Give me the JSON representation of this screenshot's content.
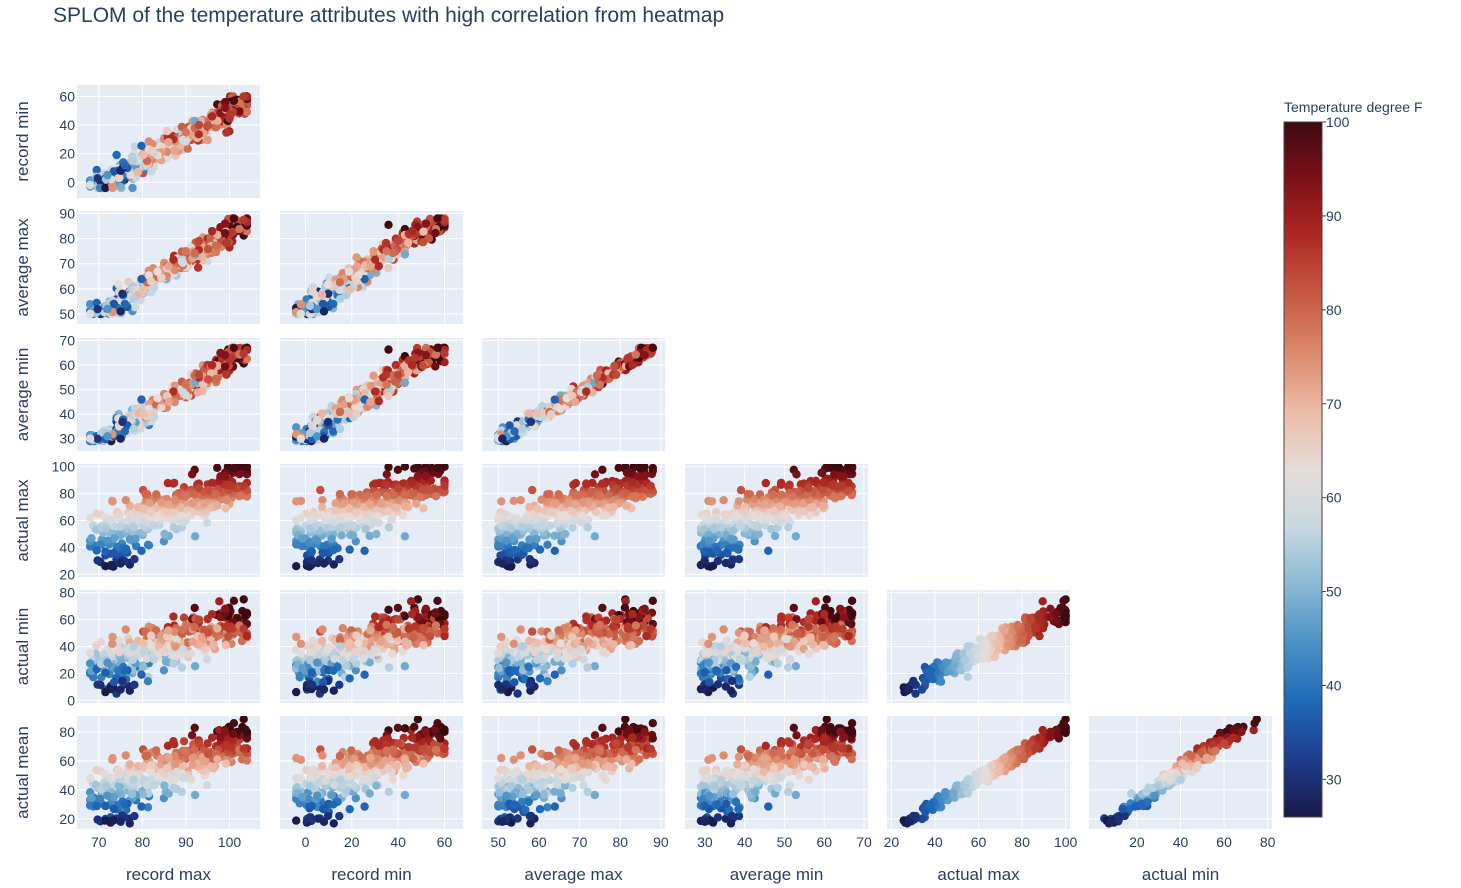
{
  "title": "SPLOM of the temperature attributes with high correlation from heatmap",
  "colorbar": {
    "title": "Temperature degree F",
    "range": [
      26,
      100
    ],
    "ticks": [
      30,
      40,
      50,
      60,
      70,
      80,
      90,
      100
    ],
    "colorscale": [
      "#1a1a4a",
      "#1e3c8c",
      "#1f6ab8",
      "#4a91c4",
      "#8ab8d4",
      "#c7d8e2",
      "#e6dcd8",
      "#ecbcaa",
      "#dc8a6c",
      "#c65a43",
      "#ae2a24",
      "#7e1018",
      "#3d0a10"
    ]
  },
  "chart_data": {
    "type": "scatter",
    "subtype": "splom-lower-triangle",
    "color_variable": "actual max",
    "dimensions": [
      {
        "name": "record max",
        "range": [
          65,
          107
        ],
        "ticks": [
          70,
          80,
          90,
          100
        ]
      },
      {
        "name": "record min",
        "range": [
          -11,
          68
        ],
        "ticks": [
          0,
          20,
          40,
          60
        ]
      },
      {
        "name": "average max",
        "range": [
          46,
          91
        ],
        "ticks": [
          50,
          60,
          70,
          80,
          90
        ]
      },
      {
        "name": "average min",
        "range": [
          25,
          71
        ],
        "ticks": [
          30,
          40,
          50,
          60,
          70
        ]
      },
      {
        "name": "actual max",
        "range": [
          18,
          102
        ],
        "ticks": [
          20,
          40,
          60,
          80,
          100
        ]
      },
      {
        "name": "actual min",
        "range": [
          -2,
          82
        ],
        "ticks": [
          20,
          40,
          60,
          80
        ]
      },
      {
        "name": "actual mean",
        "range": [
          13,
          91
        ],
        "ticks": [
          20,
          40,
          60,
          80
        ]
      }
    ],
    "y_dimension_ticks": {
      "record min": [
        0,
        20,
        40,
        60
      ],
      "average max": [
        50,
        60,
        70,
        80,
        90
      ],
      "average min": [
        30,
        40,
        50,
        60,
        70
      ],
      "actual max": [
        20,
        40,
        60,
        80,
        100
      ],
      "actual min": [
        0,
        20,
        40,
        60,
        80
      ],
      "actual mean": [
        20,
        40,
        60,
        80
      ]
    },
    "x_axis_labels": [
      "record max",
      "record min",
      "average max",
      "average min",
      "actual max",
      "actual min"
    ],
    "y_axis_labels": [
      "record min",
      "average max",
      "average min",
      "actual max",
      "actual min",
      "actual mean"
    ],
    "sample_points": [
      {
        "record max": 68,
        "record min": -2,
        "average max": 50,
        "average min": 30,
        "actual max": 62,
        "actual min": 35,
        "actual mean": 48
      },
      {
        "record max": 72,
        "record min": 5,
        "average max": 52,
        "average min": 31,
        "actual max": 45,
        "actual min": 28,
        "actual mean": 36
      },
      {
        "record max": 75,
        "record min": 8,
        "average max": 51,
        "average min": 30,
        "actual max": 28,
        "actual min": 8,
        "actual mean": 18
      },
      {
        "record max": 76,
        "record min": 12,
        "average max": 54,
        "average min": 33,
        "actual max": 38,
        "actual min": 22,
        "actual mean": 30
      },
      {
        "record max": 78,
        "record min": 15,
        "average max": 56,
        "average min": 34,
        "actual max": 55,
        "actual min": 40,
        "actual mean": 47
      },
      {
        "record max": 82,
        "record min": 22,
        "average max": 63,
        "average min": 40,
        "actual max": 66,
        "actual min": 48,
        "actual mean": 57
      },
      {
        "record max": 86,
        "record min": 28,
        "average max": 69,
        "average min": 45,
        "actual max": 72,
        "actual min": 52,
        "actual mean": 62
      },
      {
        "record max": 90,
        "record min": 35,
        "average max": 75,
        "average min": 52,
        "actual max": 78,
        "actual min": 56,
        "actual mean": 67
      },
      {
        "record max": 93,
        "record min": 40,
        "average max": 79,
        "average min": 56,
        "actual max": 84,
        "actual min": 60,
        "actual mean": 72
      },
      {
        "record max": 96,
        "record min": 46,
        "average max": 83,
        "average min": 60,
        "actual max": 88,
        "actual min": 64,
        "actual mean": 76
      },
      {
        "record max": 99,
        "record min": 52,
        "average max": 86,
        "average min": 64,
        "actual max": 93,
        "actual min": 68,
        "actual mean": 80
      },
      {
        "record max": 101,
        "record min": 57,
        "average max": 88,
        "average min": 67,
        "actual max": 99,
        "actual min": 74,
        "actual mean": 86
      }
    ]
  }
}
